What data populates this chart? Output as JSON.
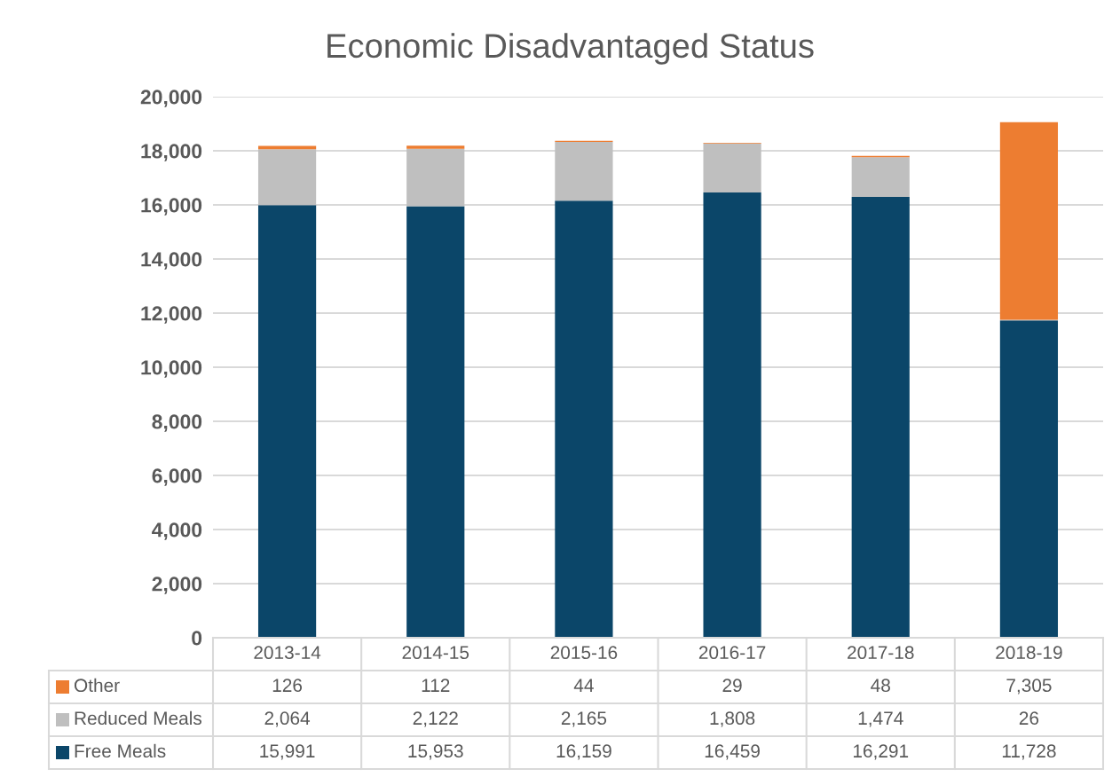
{
  "chart_data": {
    "type": "bar",
    "title": "Economic Disadvantaged Status",
    "categories": [
      "2013-14",
      "2014-15",
      "2015-16",
      "2016-17",
      "2017-18",
      "2018-19"
    ],
    "series": [
      {
        "name": "Free Meals",
        "color": "#0b4669",
        "values": [
          15991,
          15953,
          16159,
          16459,
          16291,
          11728
        ],
        "value_labels": [
          "15,991",
          "15,953",
          "16,159",
          "16,459",
          "16,291",
          "11,728"
        ]
      },
      {
        "name": "Reduced Meals",
        "color": "#bfbfbf",
        "values": [
          2064,
          2122,
          2165,
          1808,
          1474,
          26
        ],
        "value_labels": [
          "2,064",
          "2,122",
          "2,165",
          "1,808",
          "1,474",
          "26"
        ]
      },
      {
        "name": "Other",
        "color": "#ed7d31",
        "values": [
          126,
          112,
          44,
          29,
          48,
          7305
        ],
        "value_labels": [
          "126",
          "112",
          "44",
          "29",
          "48",
          "7,305"
        ]
      }
    ],
    "stacked": true,
    "ylim": [
      0,
      20000
    ],
    "yticks": [
      0,
      {
        "value": 2000,
        "label": "2,000"
      },
      {
        "value": 4000,
        "label": "4,000"
      },
      {
        "value": 6000,
        "label": "6,000"
      },
      {
        "value": 8000,
        "label": "8,000"
      },
      {
        "value": 10000,
        "label": "10,000"
      },
      {
        "value": 12000,
        "label": "12,000"
      },
      {
        "value": 14000,
        "label": "14,000"
      },
      {
        "value": 16000,
        "label": "16,000"
      },
      {
        "value": 18000,
        "label": "18,000"
      },
      {
        "value": 20000,
        "label": "20,000"
      }
    ],
    "grid": "y",
    "legend": "bottom"
  }
}
